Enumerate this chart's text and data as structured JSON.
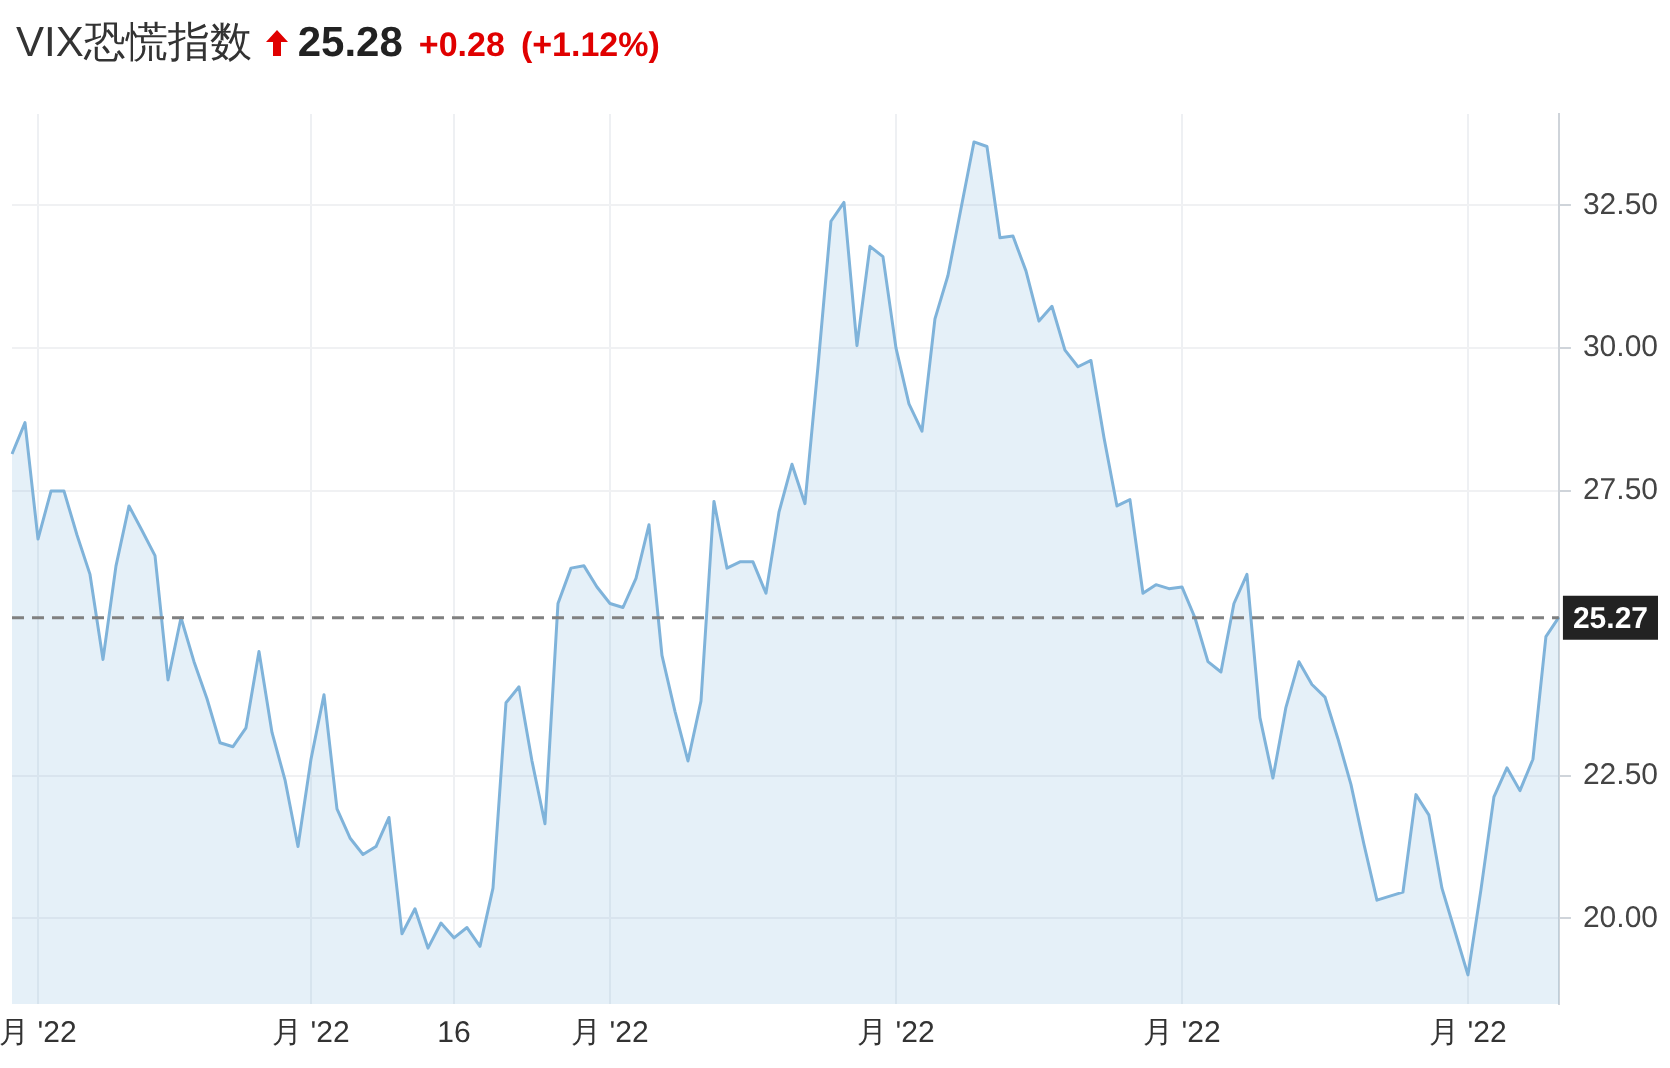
{
  "chart_data": {
    "type": "area",
    "title": "VIX恐慌指数",
    "annotations": [
      "25.28",
      "+0.28",
      "(+1.12%)"
    ],
    "categories": [
      null,
      null,
      "月 '22",
      null,
      null,
      null,
      null,
      null,
      null,
      null,
      null,
      null,
      null,
      null,
      null,
      null,
      null,
      null,
      null,
      null,
      null,
      null,
      null,
      "月 '22",
      null,
      null,
      null,
      null,
      null,
      null,
      null,
      null,
      null,
      null,
      "16",
      null,
      null,
      null,
      null,
      null,
      null,
      null,
      null,
      null,
      null,
      null,
      "月 '22",
      null,
      null,
      null,
      null,
      null,
      null,
      null,
      null,
      null,
      null,
      null,
      null,
      null,
      null,
      null,
      null,
      null,
      null,
      null,
      null,
      null,
      "月 '22",
      null,
      null,
      null,
      null,
      null,
      null,
      null,
      null,
      null,
      null,
      null,
      null,
      null,
      null,
      null,
      null,
      null,
      null,
      null,
      null,
      null,
      "月 '22",
      null,
      null,
      null,
      null,
      null,
      null,
      null,
      null,
      null,
      null,
      null,
      null,
      null,
      null,
      null,
      null,
      null,
      null,
      null,
      null,
      null,
      "月 '22",
      null,
      null,
      null,
      null,
      null,
      null,
      null
    ],
    "series": [
      {
        "color": "#7fb3da",
        "values": [
          28.14,
          28.69,
          26.65,
          27.49,
          27.49,
          26.72,
          26.03,
          24.54,
          26.18,
          27.23,
          26.8,
          26.36,
          24.18,
          25.27,
          24.5,
          23.85,
          23.08,
          23.01,
          23.34,
          24.68,
          23.26,
          22.43,
          21.26,
          22.79,
          23.92,
          21.92,
          21.41,
          21.12,
          21.26,
          21.77,
          19.73,
          20.17,
          19.48,
          19.92,
          19.66,
          19.84,
          19.51,
          20.53,
          23.78,
          24.06,
          22.76,
          21.66,
          25.52,
          26.14,
          26.18,
          25.81,
          25.52,
          25.45,
          25.96,
          26.9,
          24.61,
          23.63,
          22.76,
          23.81,
          27.31,
          26.14,
          26.25,
          26.25,
          25.7,
          27.12,
          27.96,
          27.27,
          29.67,
          32.22,
          32.55,
          30.04,
          31.78,
          31.6,
          30.0,
          29.02,
          28.54,
          30.51,
          31.27,
          32.44,
          33.61,
          33.53,
          31.93,
          31.96,
          31.35,
          30.47,
          30.73,
          29.96,
          29.67,
          29.78,
          28.43,
          27.23,
          27.34,
          25.7,
          25.85,
          25.78,
          25.81,
          25.27,
          24.5,
          24.32,
          25.52,
          26.03,
          23.52,
          22.46,
          23.7,
          24.5,
          24.1,
          23.88,
          23.15,
          22.35,
          21.3,
          20.32,
          20.39,
          20.46,
          22.17,
          21.81,
          20.53,
          19.77,
          19.01,
          20.5,
          22.13,
          22.64,
          22.24,
          22.79,
          24.94,
          25.28
        ]
      }
    ],
    "ylim": [
      18.5,
      34.1
    ],
    "yticks": [
      {
        "value": 20,
        "label": "20.00"
      },
      {
        "value": 22.5,
        "label": "22.50"
      },
      {
        "value": 27.5,
        "label": "27.50"
      },
      {
        "value": 30,
        "label": "30.00"
      },
      {
        "value": 32.5,
        "label": "32.50"
      }
    ],
    "grid": true,
    "ref_lines": [
      {
        "axis": "y",
        "value": 25.27,
        "label": "25.27",
        "color": "#808080",
        "line_style": "dashed"
      }
    ]
  }
}
